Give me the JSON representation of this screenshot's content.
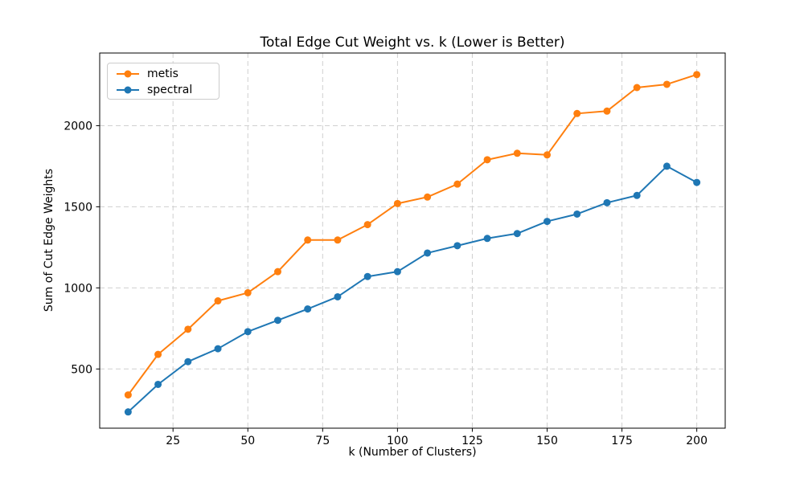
{
  "figure": {
    "title": "Total Edge Cut Weight vs. k (Lower is Better)",
    "xlabel": "k (Number of Clusters)",
    "ylabel": "Sum of Cut Edge Weights"
  },
  "legend": {
    "position": "upper left",
    "items": [
      {
        "label": "metis",
        "color": "#ff7f0e",
        "marker": "circle"
      },
      {
        "label": "spectral",
        "color": "#1f77b4",
        "marker": "circle"
      }
    ]
  },
  "colors": {
    "metis": "#ff7f0e",
    "spectral": "#1f77b4",
    "grid": "#cfcfcf",
    "spine": "#000000",
    "background": "#ffffff"
  },
  "chart_data": {
    "type": "line",
    "title": "Total Edge Cut Weight vs. k (Lower is Better)",
    "xlabel": "k (Number of Clusters)",
    "ylabel": "Sum of Cut Edge Weights",
    "grid": true,
    "grid_style": "dashed",
    "legend_position": "upper left",
    "marker": "o",
    "x": [
      10,
      20,
      30,
      40,
      50,
      60,
      70,
      80,
      90,
      100,
      110,
      120,
      130,
      140,
      150,
      160,
      170,
      180,
      190,
      200
    ],
    "series": [
      {
        "name": "metis",
        "color": "#ff7f0e",
        "values": [
          340,
          590,
          745,
          920,
          970,
          1100,
          1295,
          1295,
          1390,
          1520,
          1560,
          1640,
          1790,
          1830,
          1820,
          2075,
          2090,
          2235,
          2255,
          2315
        ]
      },
      {
        "name": "spectral",
        "color": "#1f77b4",
        "values": [
          235,
          405,
          545,
          625,
          730,
          800,
          870,
          945,
          1070,
          1100,
          1215,
          1260,
          1305,
          1335,
          1410,
          1455,
          1525,
          1570,
          1750,
          1650
        ]
      }
    ],
    "xticks": [
      25,
      50,
      75,
      100,
      125,
      150,
      175,
      200
    ],
    "yticks": [
      500,
      1000,
      1500,
      2000
    ],
    "xlim": [
      0.5,
      209.5
    ],
    "ylim": [
      135,
      2448
    ]
  }
}
